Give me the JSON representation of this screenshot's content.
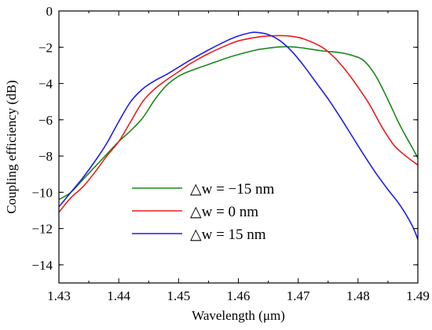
{
  "chart_data": {
    "type": "line",
    "xlabel": "Wavelength (μm)",
    "ylabel": "Coupling efficiency (dB)",
    "xlim": [
      1.43,
      1.49
    ],
    "ylim": [
      -15,
      0
    ],
    "xticks": [
      1.43,
      1.44,
      1.45,
      1.46,
      1.47,
      1.48,
      1.49
    ],
    "xtick_labels": [
      "1.43",
      "1.44",
      "1.45",
      "1.46",
      "1.47",
      "1.48",
      "1.49"
    ],
    "yticks": [
      0,
      -2,
      -4,
      -6,
      -8,
      -10,
      -12,
      -14
    ],
    "ytick_labels": [
      "0",
      "−2",
      "−4",
      "−6",
      "−8",
      "−10",
      "−12",
      "−14"
    ],
    "grid": false,
    "legend_position": "lower-center",
    "series": [
      {
        "name": "△w = −15 nm",
        "color": "#1a8a1a",
        "x": [
          1.43,
          1.432,
          1.434,
          1.436,
          1.438,
          1.44,
          1.442,
          1.444,
          1.446,
          1.448,
          1.45,
          1.452,
          1.455,
          1.458,
          1.46,
          1.463,
          1.465,
          1.467,
          1.469,
          1.471,
          1.474,
          1.477,
          1.479,
          1.481,
          1.483,
          1.485,
          1.487,
          1.489,
          1.49
        ],
        "y": [
          -10.4,
          -10.0,
          -9.3,
          -8.6,
          -7.9,
          -7.2,
          -6.6,
          -5.9,
          -4.9,
          -4.1,
          -3.6,
          -3.3,
          -2.95,
          -2.6,
          -2.4,
          -2.15,
          -2.05,
          -1.98,
          -1.98,
          -2.05,
          -2.2,
          -2.3,
          -2.45,
          -2.75,
          -3.6,
          -4.9,
          -6.3,
          -7.5,
          -8.1
        ]
      },
      {
        "name": "△w = 0 nm",
        "color": "#e81e1e",
        "x": [
          1.43,
          1.432,
          1.434,
          1.436,
          1.438,
          1.44,
          1.442,
          1.444,
          1.446,
          1.448,
          1.45,
          1.452,
          1.455,
          1.458,
          1.46,
          1.463,
          1.465,
          1.467,
          1.469,
          1.471,
          1.474,
          1.476,
          1.478,
          1.48,
          1.482,
          1.484,
          1.486,
          1.488,
          1.49
        ],
        "y": [
          -11.1,
          -10.3,
          -9.7,
          -8.9,
          -8.0,
          -7.2,
          -6.1,
          -5.0,
          -4.3,
          -3.8,
          -3.35,
          -2.9,
          -2.35,
          -1.9,
          -1.65,
          -1.45,
          -1.38,
          -1.36,
          -1.4,
          -1.55,
          -2.0,
          -2.55,
          -3.3,
          -4.2,
          -5.2,
          -6.4,
          -7.4,
          -8.0,
          -8.5
        ]
      },
      {
        "name": "△w = 15 nm",
        "color": "#1f1fe6",
        "x": [
          1.43,
          1.432,
          1.434,
          1.436,
          1.438,
          1.44,
          1.442,
          1.444,
          1.446,
          1.448,
          1.45,
          1.452,
          1.455,
          1.458,
          1.46,
          1.462,
          1.463,
          1.465,
          1.467,
          1.469,
          1.471,
          1.473,
          1.475,
          1.477,
          1.479,
          1.481,
          1.483,
          1.485,
          1.487,
          1.489,
          1.49
        ],
        "y": [
          -10.8,
          -10.0,
          -9.2,
          -8.3,
          -7.3,
          -6.1,
          -5.0,
          -4.3,
          -3.85,
          -3.5,
          -3.1,
          -2.7,
          -2.15,
          -1.65,
          -1.38,
          -1.2,
          -1.18,
          -1.3,
          -1.65,
          -2.25,
          -3.05,
          -3.95,
          -4.85,
          -5.85,
          -6.9,
          -7.95,
          -8.95,
          -9.85,
          -10.7,
          -11.8,
          -12.6
        ]
      }
    ]
  }
}
